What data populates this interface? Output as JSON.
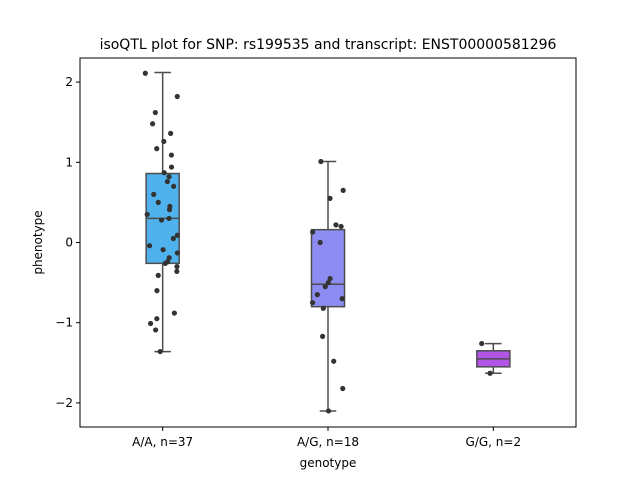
{
  "chart_data": {
    "type": "box",
    "title": "isoQTL plot for SNP: rs199535 and transcript: ENST00000581296",
    "xlabel": "genotype",
    "ylabel": "phenotype",
    "ylim": [
      -2.3,
      2.3
    ],
    "yticks": [
      -2,
      -1,
      0,
      1,
      2
    ],
    "ytick_labels": [
      "−2",
      "−1",
      "0",
      "1",
      "2"
    ],
    "categories": [
      "A/A, n=37",
      "A/G, n=18",
      "G/G, n=2"
    ],
    "boxes": [
      {
        "category": "A/A, n=37",
        "color": "#4fb2ec",
        "whisker_low": -1.36,
        "q1": -0.26,
        "median": 0.3,
        "q3": 0.86,
        "whisker_high": 2.12,
        "points": [
          2.11,
          1.82,
          1.62,
          1.48,
          1.36,
          1.26,
          1.17,
          1.09,
          0.94,
          0.87,
          0.82,
          0.76,
          0.7,
          0.6,
          0.5,
          0.45,
          0.41,
          0.35,
          0.3,
          0.28,
          0.09,
          0.05,
          -0.04,
          -0.09,
          -0.13,
          -0.19,
          -0.24,
          -0.26,
          -0.3,
          -0.36,
          -0.41,
          -0.6,
          -0.88,
          -0.95,
          -1.01,
          -1.09,
          -1.36
        ]
      },
      {
        "category": "A/G, n=18",
        "color": "#8c8cf2",
        "whisker_low": -2.1,
        "q1": -0.8,
        "median": -0.52,
        "q3": 0.16,
        "whisker_high": 1.01,
        "points": [
          1.01,
          0.65,
          0.55,
          0.22,
          0.2,
          0.13,
          0.0,
          -0.45,
          -0.5,
          -0.55,
          -0.65,
          -0.7,
          -0.75,
          -0.82,
          -1.17,
          -1.48,
          -1.82,
          -2.1
        ]
      },
      {
        "category": "G/G, n=2",
        "color": "#b255e6",
        "whisker_low": -1.63,
        "q1": -1.55,
        "median": -1.45,
        "q3": -1.35,
        "whisker_high": -1.26,
        "points": [
          -1.26,
          -1.63
        ]
      }
    ]
  }
}
